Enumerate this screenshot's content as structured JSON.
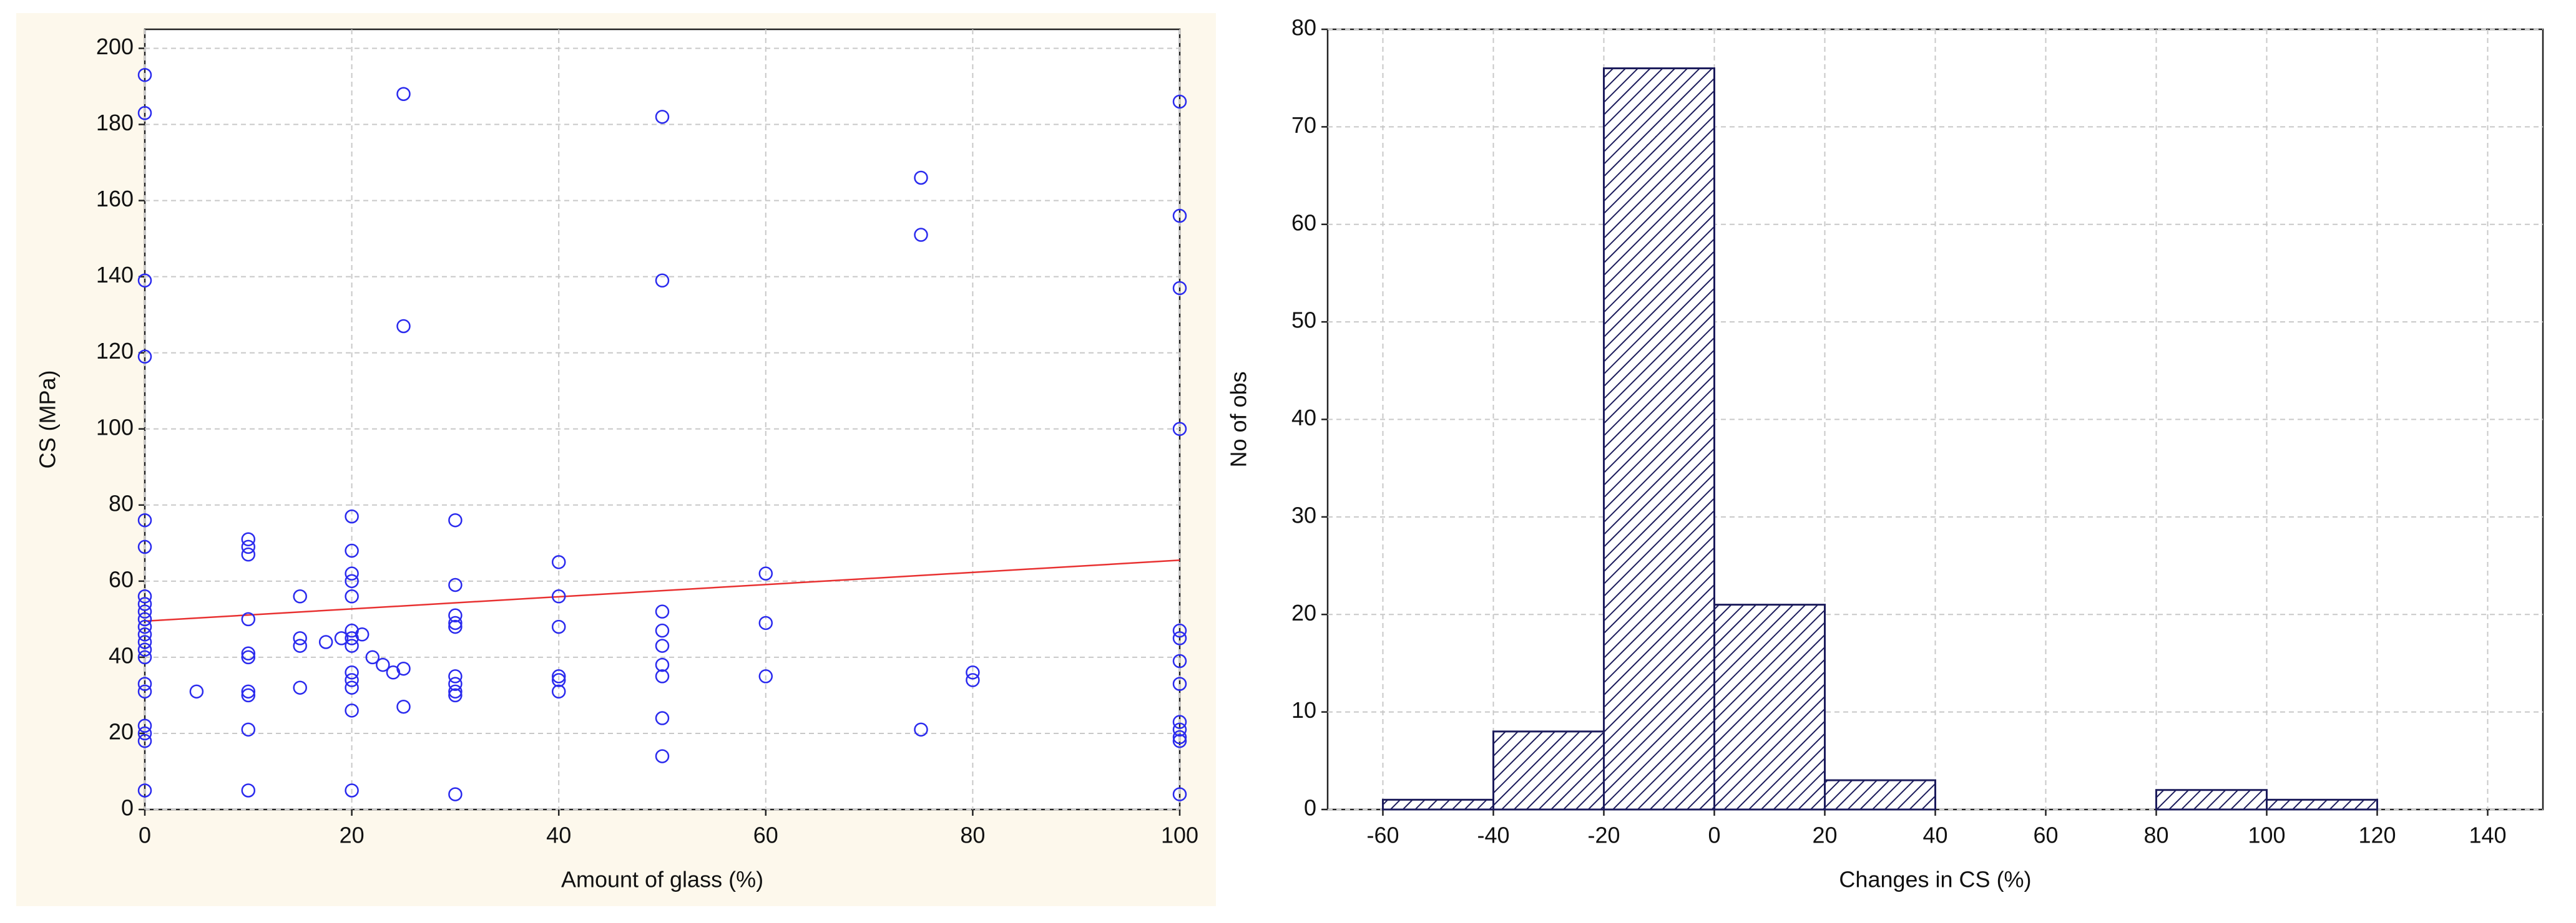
{
  "chart_data": [
    {
      "type": "scatter",
      "x_label": "Amount of glass (%)",
      "y_label": "CS (MPa)",
      "xlim": [
        0,
        100
      ],
      "ylim": [
        0,
        205
      ],
      "xticks": [
        0,
        20,
        40,
        60,
        80,
        100
      ],
      "yticks": [
        0,
        20,
        40,
        60,
        80,
        100,
        120,
        140,
        160,
        180,
        200
      ],
      "grid": true,
      "color": "#2a2aee",
      "x": [
        0,
        0,
        0,
        0,
        0,
        0,
        0,
        0,
        0,
        0,
        0,
        0,
        0,
        0,
        0,
        0,
        0,
        0,
        0,
        0,
        0,
        5,
        10,
        10,
        10,
        10,
        10,
        10,
        10,
        10,
        10,
        10,
        15,
        15,
        15,
        15,
        17.5,
        19,
        20,
        20,
        20,
        20,
        20,
        20,
        20,
        20,
        20,
        20,
        20,
        20,
        20,
        21,
        22,
        23,
        24,
        25,
        25,
        25,
        25,
        30,
        30,
        30,
        30,
        30,
        30,
        30,
        30,
        30,
        30,
        40,
        40,
        40,
        40,
        40,
        40,
        50,
        50,
        50,
        50,
        50,
        50,
        50,
        50,
        50,
        60,
        60,
        60,
        75,
        75,
        75,
        80,
        80,
        100,
        100,
        100,
        100,
        100,
        100,
        100,
        100,
        100,
        100,
        100,
        100,
        100
      ],
      "values": [
        193,
        183,
        139,
        119,
        76,
        69,
        56,
        54,
        52,
        50,
        48,
        46,
        44,
        42,
        40,
        33,
        31,
        22,
        20,
        18,
        5,
        31,
        71,
        69,
        67,
        50,
        41,
        40,
        31,
        30,
        21,
        5,
        56,
        45,
        43,
        32,
        44,
        45,
        77,
        68,
        62,
        60,
        56,
        47,
        45,
        43,
        36,
        34,
        32,
        26,
        5,
        46,
        40,
        38,
        36,
        188,
        127,
        37,
        27,
        76,
        59,
        51,
        49,
        48,
        35,
        33,
        31,
        30,
        4,
        65,
        56,
        48,
        35,
        34,
        31,
        182,
        139,
        52,
        47,
        43,
        38,
        35,
        24,
        14,
        62,
        49,
        35,
        166,
        151,
        21,
        36,
        34,
        186,
        156,
        137,
        100,
        47,
        45,
        39,
        33,
        23,
        21,
        19,
        18,
        4
      ],
      "fit_line": {
        "x": [
          0,
          100
        ],
        "values": [
          49.5,
          65.5
        ],
        "color": "#e83030"
      }
    },
    {
      "type": "histogram",
      "x_label": "Changes in CS (%)",
      "y_label": "No of obs",
      "xlim": [
        -70,
        150
      ],
      "ylim": [
        0,
        80
      ],
      "xticks": [
        -60,
        -40,
        -20,
        0,
        20,
        40,
        60,
        80,
        100,
        120,
        140
      ],
      "yticks": [
        0,
        10,
        20,
        30,
        40,
        50,
        60,
        70,
        80
      ],
      "grid": true,
      "color": "#1c1c5c",
      "bins": [
        -60,
        -40,
        -20,
        0,
        20,
        40,
        60,
        80,
        100,
        120
      ],
      "values": [
        1,
        8,
        76,
        21,
        3,
        0,
        0,
        2,
        1
      ]
    }
  ]
}
